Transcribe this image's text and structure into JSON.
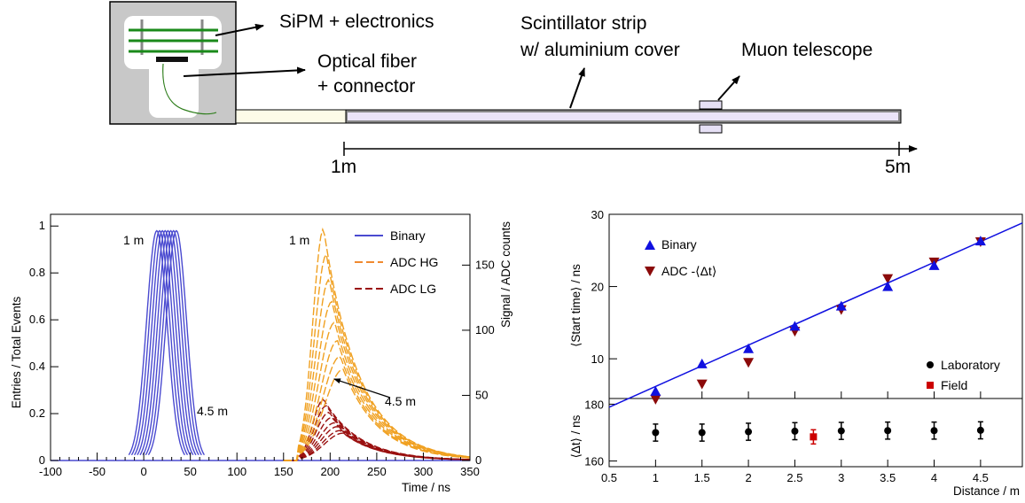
{
  "schematic": {
    "labels": {
      "sipm": "SiPM + electronics",
      "fiber_1": "Optical fiber",
      "fiber_2": "+ connector",
      "strip_1": "Scintillator strip",
      "strip_2": "w/ aluminium cover",
      "muon": "Muon telescope",
      "start": "1m",
      "end": "5m"
    }
  },
  "chart_data": [
    {
      "type": "line",
      "xlabel": "Time / ns",
      "ylabel": "Entries / Total Events",
      "y2label": "Signal / ADC counts",
      "xlim": [
        -100,
        350
      ],
      "ylim": [
        0,
        1.05
      ],
      "y2lim": [
        0,
        189
      ],
      "xticks": [
        "-100",
        "-50",
        "0",
        "50",
        "100",
        "150",
        "200",
        "250",
        "300",
        "350"
      ],
      "yticks": [
        "0",
        "0.2",
        "0.4",
        "0.6",
        "0.8",
        "1"
      ],
      "y2ticks": [
        "0",
        "50",
        "100",
        "150"
      ],
      "legend": [
        "Binary",
        "ADC HG",
        "ADC LG"
      ],
      "legend_position": "top-right",
      "annotations": {
        "binary_first": "1 m",
        "binary_last": "4.5 m",
        "adc_first": "1 m",
        "adc_last": "4.5 m"
      },
      "colors": {
        "binary": "#4a4ad0",
        "adc_hg": "#f0a020",
        "adc_lg": "#9a1010"
      },
      "binary_peaks": [
        14,
        17,
        20,
        23,
        26,
        29,
        32,
        35
      ],
      "binary_peak_value": 0.98,
      "adc_hg_peaks_x": [
        193,
        196,
        199,
        202,
        205,
        208,
        211,
        214
      ],
      "adc_hg_peaks_y": [
        178,
        158,
        139,
        122,
        106,
        92,
        80,
        70
      ],
      "adc_lg_peaks_y": [
        47,
        42,
        37,
        33,
        29,
        26,
        23,
        21
      ]
    },
    {
      "type": "scatter",
      "xlabel": "Distance / m",
      "ylabel_top": "⟨Start time⟩ / ns",
      "ylabel_bottom": "⟨Δt⟩ / ns",
      "xlim": [
        0.5,
        4.95
      ],
      "ylim_top": [
        4.5,
        30
      ],
      "ylim_bottom": [
        158,
        182
      ],
      "xticks": [
        "0.5",
        "1",
        "1.5",
        "2",
        "2.5",
        "3",
        "3.5",
        "4",
        "4.5"
      ],
      "yticks_top": [
        "10",
        "20",
        "30"
      ],
      "yticks_bottom": [
        "160",
        "180"
      ],
      "legend_top": [
        "Binary",
        "ADC -⟨Δt⟩"
      ],
      "legend_bottom": [
        "Laboratory",
        "Field"
      ],
      "colors": {
        "binary": "#1010e0",
        "adc": "#8b0a0a",
        "fit": "#1010e0",
        "lab": "#000000",
        "field": "#cc0000"
      },
      "x": [
        1.0,
        1.5,
        2.0,
        2.5,
        3.0,
        3.5,
        4.0,
        4.5
      ],
      "binary": [
        5.5,
        9.3,
        11.4,
        14.5,
        17.3,
        20.0,
        22.9,
        26.3
      ],
      "adc": [
        4.4,
        6.5,
        9.5,
        13.8,
        16.8,
        21.1,
        23.4,
        26.2
      ],
      "fit": {
        "x": [
          0.5,
          4.95
        ],
        "y": [
          3.3,
          28.8
        ]
      },
      "laboratory": [
        170,
        170,
        170.3,
        170.5,
        170.6,
        170.7,
        170.7,
        170.8
      ],
      "laboratory_err": [
        3,
        3,
        3,
        3,
        3,
        3,
        3,
        3
      ],
      "field": {
        "x": 2.7,
        "y": 168.5,
        "err": 2.5
      }
    }
  ]
}
